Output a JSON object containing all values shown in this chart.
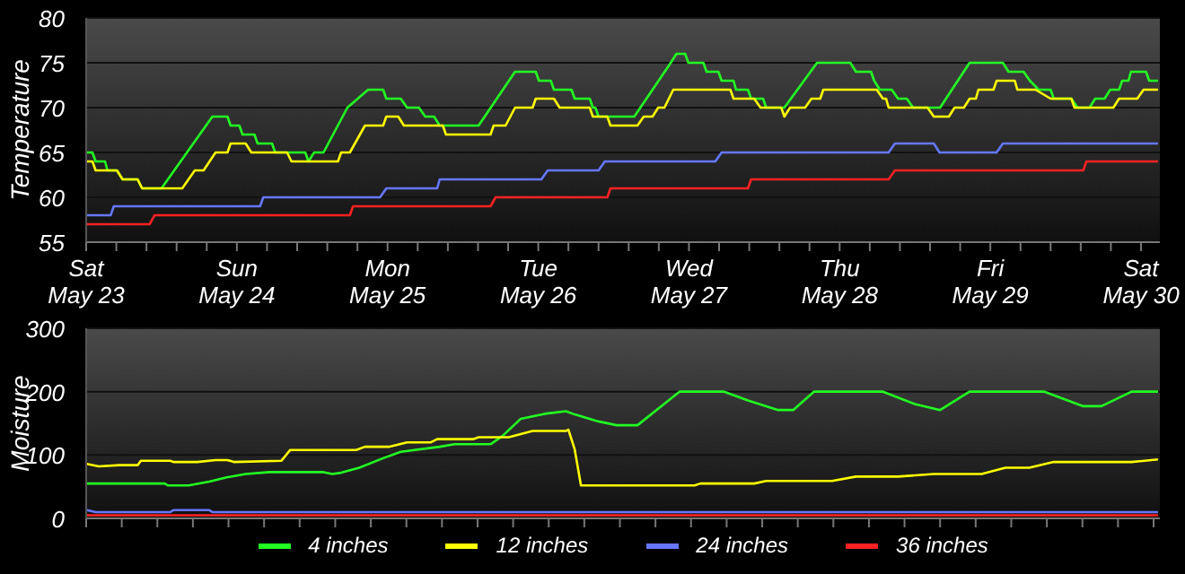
{
  "chart_data": [
    {
      "type": "line",
      "ylabel": "Temperature",
      "xlim": [
        "--05-23",
        "--05-30T03:00"
      ],
      "ylim": [
        55,
        80
      ],
      "yticks": [
        55,
        60,
        65,
        70,
        75,
        80
      ],
      "grid": "y",
      "legend": false,
      "xticks": [
        {
          "value": "--05-23",
          "label": "Sat May 23"
        },
        {
          "value": "--05-23T04:48",
          "label": null
        },
        {
          "value": "--05-23T09:36",
          "label": null
        },
        {
          "value": "--05-23T14:24",
          "label": null
        },
        {
          "value": "--05-23T19:12",
          "label": null
        },
        {
          "value": "--05-24",
          "label": "Sun May 24"
        },
        {
          "value": "--05-24T04:48",
          "label": null
        },
        {
          "value": "--05-24T09:36",
          "label": null
        },
        {
          "value": "--05-24T14:24",
          "label": null
        },
        {
          "value": "--05-24T19:12",
          "label": null
        },
        {
          "value": "--05-25",
          "label": "Mon May 25"
        },
        {
          "value": "--05-25T04:48",
          "label": null
        },
        {
          "value": "--05-25T09:36",
          "label": null
        },
        {
          "value": "--05-25T14:24",
          "label": null
        },
        {
          "value": "--05-25T19:12",
          "label": null
        },
        {
          "value": "--05-26",
          "label": "Tue May 26"
        },
        {
          "value": "--05-26T04:48",
          "label": null
        },
        {
          "value": "--05-26T09:36",
          "label": null
        },
        {
          "value": "--05-26T14:24",
          "label": null
        },
        {
          "value": "--05-26T19:12",
          "label": null
        },
        {
          "value": "--05-27",
          "label": "Wed May 27"
        },
        {
          "value": "--05-27T04:48",
          "label": null
        },
        {
          "value": "--05-27T09:36",
          "label": null
        },
        {
          "value": "--05-27T14:24",
          "label": null
        },
        {
          "value": "--05-27T19:12",
          "label": null
        },
        {
          "value": "--05-28",
          "label": "Thu May 28"
        },
        {
          "value": "--05-28T04:48",
          "label": null
        },
        {
          "value": "--05-28T09:36",
          "label": null
        },
        {
          "value": "--05-28T14:24",
          "label": null
        },
        {
          "value": "--05-28T19:12",
          "label": null
        },
        {
          "value": "--05-29",
          "label": "Fri May 29"
        },
        {
          "value": "--05-29T04:48",
          "label": null
        },
        {
          "value": "--05-29T09:36",
          "label": null
        },
        {
          "value": "--05-29T14:24",
          "label": null
        },
        {
          "value": "--05-29T19:12",
          "label": null
        },
        {
          "value": "--05-30",
          "label": "Sat May 30"
        }
      ],
      "series": [
        {
          "color": "#22ff22",
          "x": [
            "--05-23T00:06",
            "--05-23T01:00",
            "--05-23T01:30",
            "--05-23T03:00",
            "--05-23T03:24",
            "--05-23T04:54",
            "--05-23T05:48",
            "--05-23T08:12",
            "--05-23T08:54",
            "--05-23T12:00",
            "--05-23T20:06",
            "--05-23T22:30",
            "--05-23T23:00",
            "--05-24T00:24",
            "--05-24T00:54",
            "--05-24T02:48",
            "--05-24T03:18",
            "--05-24T05:36",
            "--05-24T06:06",
            "--05-24T10:54",
            "--05-24T11:24",
            "--05-24T12:18",
            "--05-24T13:48",
            "--05-24T17:36",
            "--05-24T20:54",
            "--05-24T23:18",
            "--05-24T23:48",
            "--05-25T02:06",
            "--05-25T03:06",
            "--05-25T05:00",
            "--05-25T06:00",
            "--05-25T07:24",
            "--05-25T08:18",
            "--05-25T14:30",
            "--05-25T20:18",
            "--05-25T23:36",
            "--05-26T00:06",
            "--05-26T02:00",
            "--05-26T02:30",
            "--05-26T05:18",
            "--05-26T05:48",
            "--05-26T08:12",
            "--05-26T08:42",
            "--05-26T09:06",
            "--05-26T09:36",
            "--05-26T15:18",
            "--05-26T21:06",
            "--05-26T22:00",
            "--05-26T23:24",
            "--05-26T23:54",
            "--05-27T02:18",
            "--05-27T02:48",
            "--05-27T04:42",
            "--05-27T05:12",
            "--05-27T07:06",
            "--05-27T07:30",
            "--05-27T09:24",
            "--05-27T09:54",
            "--05-27T11:48",
            "--05-27T12:18",
            "--05-27T15:12",
            "--05-27T20:24",
            "--05-28T01:42",
            "--05-28T02:36",
            "--05-28T05:00",
            "--05-28T05:30",
            "--05-28T06:24",
            "--05-28T08:18",
            "--05-28T09:18",
            "--05-28T10:42",
            "--05-28T11:42",
            "--05-28T16:00",
            "--05-28T20:42",
            "--05-29T02:00",
            "--05-29T02:54",
            "--05-29T05:18",
            "--05-29T06:18",
            "--05-29T07:42",
            "--05-29T09:36",
            "--05-29T10:06",
            "--05-29T12:54",
            "--05-29T13:54",
            "--05-29T15:48",
            "--05-29T16:42",
            "--05-29T18:12",
            "--05-29T19:06",
            "--05-29T20:30",
            "--05-29T21:00",
            "--05-29T22:00",
            "--05-29T22:24",
            "--05-30T00:48",
            "--05-30T01:18",
            "--05-30T02:42"
          ],
          "values": [
            65,
            65,
            64,
            64,
            63,
            63,
            62,
            62,
            61,
            61,
            69,
            69,
            68,
            68,
            67,
            67,
            66,
            66,
            65,
            65,
            64,
            65,
            65,
            70,
            72,
            72,
            71,
            71,
            70,
            70,
            69,
            69,
            68,
            68,
            74,
            74,
            73,
            73,
            72,
            72,
            71,
            71,
            70,
            70,
            69,
            69,
            75,
            76,
            76,
            75,
            75,
            74,
            74,
            73,
            73,
            72,
            72,
            71,
            71,
            70,
            70,
            75,
            75,
            74,
            74,
            73,
            72,
            72,
            71,
            71,
            70,
            70,
            75,
            75,
            74,
            74,
            73,
            72,
            72,
            71,
            71,
            70,
            70,
            71,
            71,
            72,
            72,
            73,
            73,
            74,
            74,
            73,
            73
          ]
        },
        {
          "color": "#ffff00",
          "x": [
            "--05-23T00:06",
            "--05-23T01:00",
            "--05-23T01:30",
            "--05-23T04:54",
            "--05-23T05:48",
            "--05-23T08:12",
            "--05-23T08:54",
            "--05-23T15:18",
            "--05-23T17:18",
            "--05-23T18:42",
            "--05-23T20:36",
            "--05-23T22:30",
            "--05-23T23:00",
            "--05-24T01:24",
            "--05-24T02:18",
            "--05-24T08:00",
            "--05-24T08:42",
            "--05-24T16:06",
            "--05-24T16:36",
            "--05-24T18:00",
            "--05-24T20:24",
            "--05-24T23:18",
            "--05-24T23:48",
            "--05-25T01:42",
            "--05-25T02:36",
            "--05-25T08:48",
            "--05-25T09:18",
            "--05-25T16:24",
            "--05-25T16:54",
            "--05-25T18:48",
            "--05-25T20:18",
            "--05-25T23:06",
            "--05-25T23:36",
            "--05-26T02:30",
            "--05-26T03:24",
            "--05-26T08:12",
            "--05-26T08:42",
            "--05-26T11:00",
            "--05-26T11:30",
            "--05-26T15:48",
            "--05-26T16:48",
            "--05-26T18:12",
            "--05-26T19:06",
            "--05-26T20:06",
            "--05-26T21:30",
            "--05-27T06:36",
            "--05-27T07:06",
            "--05-27T10:24",
            "--05-27T11:24",
            "--05-27T14:42",
            "--05-27T15:12",
            "--05-27T16:06",
            "--05-27T18:30",
            "--05-27T19:30",
            "--05-27T20:54",
            "--05-27T21:24",
            "--05-28T05:54",
            "--05-28T06:54",
            "--05-28T07:24",
            "--05-28T07:48",
            "--05-28T14:00",
            "--05-28T15:00",
            "--05-28T17:24",
            "--05-28T18:18",
            "--05-28T19:48",
            "--05-28T20:42",
            "--05-28T21:42",
            "--05-28T22:06",
            "--05-29T00:30",
            "--05-29T01:00",
            "--05-29T03:54",
            "--05-29T04:18",
            "--05-29T07:12",
            "--05-29T09:36",
            "--05-29T12:54",
            "--05-29T13:24",
            "--05-29T19:36",
            "--05-29T20:30",
            "--05-29T23:24",
            "--05-30T00:24",
            "--05-30T02:42"
          ],
          "values": [
            64,
            64,
            63,
            63,
            62,
            62,
            61,
            61,
            63,
            63,
            65,
            65,
            66,
            66,
            65,
            65,
            64,
            64,
            65,
            65,
            68,
            68,
            69,
            69,
            68,
            68,
            67,
            67,
            68,
            68,
            70,
            70,
            71,
            71,
            70,
            70,
            69,
            69,
            68,
            68,
            69,
            69,
            70,
            70,
            72,
            72,
            71,
            71,
            70,
            70,
            69,
            70,
            70,
            71,
            71,
            72,
            72,
            71,
            71,
            70,
            70,
            69,
            69,
            70,
            70,
            71,
            71,
            72,
            72,
            73,
            73,
            72,
            72,
            71,
            71,
            70,
            70,
            71,
            71,
            72,
            72
          ]
        },
        {
          "color": "#6677ff",
          "x": [
            "--05-23T00:06",
            "--05-23T03:54",
            "--05-23T04:24",
            "--05-24T03:42",
            "--05-24T04:12",
            "--05-24T22:48",
            "--05-24T23:48",
            "--05-25T07:54",
            "--05-25T08:18",
            "--05-26T00:30",
            "--05-26T01:30",
            "--05-26T09:36",
            "--05-26T10:36",
            "--05-27T04:12",
            "--05-27T05:12",
            "--05-28T07:48",
            "--05-28T08:48",
            "--05-28T15:00",
            "--05-28T15:54",
            "--05-29T01:00",
            "--05-29T02:00",
            "--05-30T02:42"
          ],
          "values": [
            58,
            58,
            59,
            59,
            60,
            60,
            61,
            61,
            62,
            62,
            63,
            63,
            64,
            64,
            65,
            65,
            66,
            66,
            65,
            65,
            66,
            66
          ]
        },
        {
          "color": "#ff2222",
          "x": [
            "--05-23T00:06",
            "--05-23T10:06",
            "--05-23T10:54",
            "--05-24T18:00",
            "--05-24T18:30",
            "--05-25T16:24",
            "--05-25T17:12",
            "--05-26T11:00",
            "--05-26T11:30",
            "--05-27T09:24",
            "--05-27T09:54",
            "--05-28T07:48",
            "--05-28T08:48",
            "--05-29T14:48",
            "--05-29T15:18",
            "--05-30T02:42"
          ],
          "values": [
            57,
            57,
            58,
            58,
            59,
            59,
            60,
            60,
            61,
            61,
            62,
            62,
            63,
            63,
            64,
            64
          ]
        }
      ]
    },
    {
      "type": "line",
      "ylabel": "Moisture",
      "xlim": [
        "--05-23",
        "--05-30T03:00"
      ],
      "ylim": [
        0,
        300
      ],
      "yticks": [
        0,
        100,
        200,
        300
      ],
      "grid": "y",
      "legend": "bottom",
      "tick_labels": "y",
      "xticks": [
        {
          "value": "--05-23",
          "label": null
        },
        {
          "value": "--05-23T05:40",
          "label": null
        },
        {
          "value": "--05-23T11:20",
          "label": null
        },
        {
          "value": "--05-23T17:00",
          "label": null
        },
        {
          "value": "--05-23T22:40",
          "label": null
        },
        {
          "value": "--05-24T04:20",
          "label": null
        },
        {
          "value": "--05-24T10:00",
          "label": null
        },
        {
          "value": "--05-24T15:40",
          "label": null
        },
        {
          "value": "--05-24T21:20",
          "label": null
        },
        {
          "value": "--05-25T03:00",
          "label": null
        },
        {
          "value": "--05-25T08:40",
          "label": null
        },
        {
          "value": "--05-25T14:20",
          "label": null
        },
        {
          "value": "--05-25T20:00",
          "label": null
        },
        {
          "value": "--05-26T01:40",
          "label": null
        },
        {
          "value": "--05-26T07:20",
          "label": null
        },
        {
          "value": "--05-26T13:00",
          "label": null
        },
        {
          "value": "--05-26T18:40",
          "label": null
        },
        {
          "value": "--05-27T00:20",
          "label": null
        },
        {
          "value": "--05-27T06:00",
          "label": null
        },
        {
          "value": "--05-27T11:40",
          "label": null
        },
        {
          "value": "--05-27T17:20",
          "label": null
        },
        {
          "value": "--05-27T23:00",
          "label": null
        },
        {
          "value": "--05-28T04:40",
          "label": null
        },
        {
          "value": "--05-28T10:20",
          "label": null
        },
        {
          "value": "--05-28T16:00",
          "label": null
        },
        {
          "value": "--05-28T21:40",
          "label": null
        },
        {
          "value": "--05-29T03:20",
          "label": null
        },
        {
          "value": "--05-29T09:00",
          "label": null
        },
        {
          "value": "--05-29T14:40",
          "label": null
        },
        {
          "value": "--05-29T20:20",
          "label": null
        },
        {
          "value": "--05-30T02:00",
          "label": null
        }
      ],
      "series": [
        {
          "name": "4 inches",
          "color": "#22ff22",
          "x": [
            "--05-23T00:06",
            "--05-23T12:30",
            "--05-23T13:00",
            "--05-23T16:18",
            "--05-23T19:36",
            "--05-23T22:30",
            "--05-24T01:24",
            "--05-24T05:12",
            "--05-24T13:48",
            "--05-24T15:12",
            "--05-24T16:36",
            "--05-24T19:30",
            "--05-24T23:18",
            "--05-25T02:06",
            "--05-25T08:18",
            "--05-25T10:42",
            "--05-25T16:24",
            "--05-25T18:18",
            "--05-25T21:12",
            "--05-26T01:00",
            "--05-26T04:24",
            "--05-26T05:48",
            "--05-26T09:36",
            "--05-26T12:30",
            "--05-26T15:48",
            "--05-26T22:30",
            "--05-27T05:36",
            "--05-27T09:24",
            "--05-27T14:12",
            "--05-27T16:36",
            "--05-27T19:54",
            "--05-28T06:54",
            "--05-28T12:06",
            "--05-28T16:00",
            "--05-28T20:42",
            "--05-29T08:36",
            "--05-29T14:48",
            "--05-29T17:42",
            "--05-29T22:30",
            "--05-30T02:42"
          ],
          "values": [
            55,
            55,
            52,
            52,
            58,
            65,
            70,
            73,
            73,
            70,
            72,
            80,
            95,
            105,
            113,
            117,
            117,
            130,
            157,
            165,
            169,
            164,
            153,
            147,
            147,
            200,
            200,
            186,
            171,
            171,
            200,
            200,
            180,
            171,
            200,
            200,
            177,
            177,
            200,
            200
          ]
        },
        {
          "name": "12 inches",
          "color": "#ffff00",
          "x": [
            "--05-23T00:06",
            "--05-23T02:00",
            "--05-23T05:18",
            "--05-23T08:12",
            "--05-23T08:42",
            "--05-23T13:24",
            "--05-23T13:54",
            "--05-23T17:42",
            "--05-23T20:36",
            "--05-23T22:30",
            "--05-23T23:30",
            "--05-24T07:06",
            "--05-24T08:30",
            "--05-24T19:00",
            "--05-24T20:24",
            "--05-25T00:12",
            "--05-25T03:06",
            "--05-25T06:54",
            "--05-25T07:54",
            "--05-25T13:36",
            "--05-25T14:30",
            "--05-25T19:18",
            "--05-25T23:06",
            "--05-26T04:24",
            "--05-26T04:48",
            "--05-26T05:48",
            "--05-26T06:48",
            "--05-27T00:54",
            "--05-27T01:48",
            "--05-27T10:24",
            "--05-27T12:18",
            "--05-27T22:48",
            "--05-28T02:36",
            "--05-28T09:18",
            "--05-28T15:00",
            "--05-28T22:36",
            "--05-29T02:24",
            "--05-29T06:12",
            "--05-29T10:06",
            "--05-29T22:30",
            "--05-30T02:42"
          ],
          "values": [
            86,
            82,
            84,
            84,
            91,
            91,
            89,
            89,
            92,
            92,
            89,
            91,
            108,
            108,
            113,
            113,
            120,
            120,
            125,
            125,
            128,
            128,
            138,
            138,
            140,
            109,
            52,
            52,
            55,
            55,
            59,
            59,
            66,
            66,
            70,
            70,
            80,
            80,
            89,
            89,
            93
          ]
        },
        {
          "name": "24 inches",
          "color": "#6677ff",
          "x": [
            "--05-23T00:06",
            "--05-23T01:30",
            "--05-23T13:24",
            "--05-23T13:54",
            "--05-23T19:36",
            "--05-23T20:06",
            "--05-30T02:42"
          ],
          "values": [
            13,
            10,
            10,
            13,
            13,
            10,
            10
          ]
        },
        {
          "name": "36 inches",
          "color": "#ff2222",
          "x": [
            "--05-23T00:06",
            "--05-30T02:42"
          ],
          "values": [
            5,
            5
          ]
        }
      ]
    }
  ]
}
